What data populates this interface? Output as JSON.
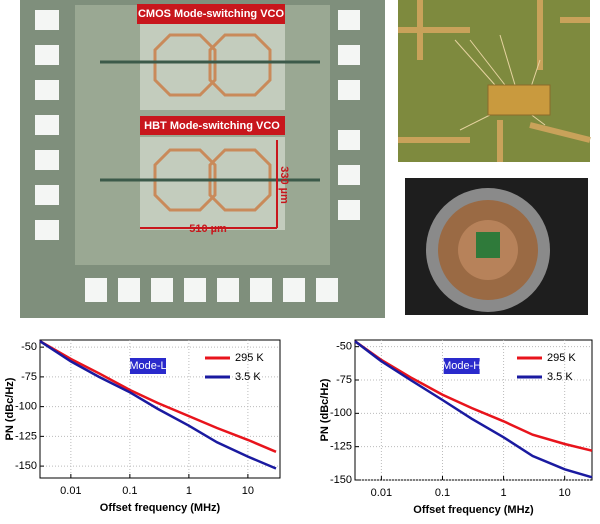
{
  "micrograph": {
    "labels": [
      "CMOS Mode-switching VCO",
      "HBT Mode-switching VCO"
    ],
    "height_label": "330 µm",
    "width_label": "510 µm"
  },
  "chart_data": [
    {
      "type": "line",
      "annotation": "Mode-L",
      "xlabel": "Offset frequency (MHz)",
      "ylabel": "PN (dBc/Hz)",
      "xscale": "log",
      "grid": true,
      "legend": "upper right",
      "x": [
        0.003,
        0.01,
        0.03,
        0.1,
        0.3,
        1,
        3,
        10,
        30
      ],
      "series": [
        {
          "name": "295 K",
          "color": "#e8141c",
          "values": [
            -45,
            -60,
            -72,
            -86,
            -97,
            -108,
            -118,
            -128,
            -138
          ]
        },
        {
          "name": "3.5 K",
          "color": "#1a1aa0",
          "values": [
            -45,
            -62,
            -75,
            -88,
            -102,
            -116,
            -130,
            -142,
            -152
          ]
        }
      ],
      "xlim": [
        0.003,
        35
      ],
      "ylim": [
        -160,
        -44
      ],
      "xticks": [
        0.01,
        0.1,
        1,
        10
      ],
      "yticks": [
        -50,
        -75,
        -100,
        -125,
        -150
      ]
    },
    {
      "type": "line",
      "annotation": "Mode-H",
      "xlabel": "Offset frequency (MHz)",
      "ylabel": "PN (dBc/Hz)",
      "xscale": "log",
      "grid": true,
      "legend": "upper right",
      "x": [
        0.0037,
        0.01,
        0.03,
        0.1,
        0.3,
        1,
        3,
        10,
        28
      ],
      "series": [
        {
          "name": "295 K",
          "color": "#e8141c",
          "values": [
            -46,
            -60,
            -73,
            -86,
            -96,
            -106,
            -116,
            -123,
            -128
          ]
        },
        {
          "name": "3.5 K",
          "color": "#1a1aa0",
          "values": [
            -46,
            -61,
            -75,
            -90,
            -104,
            -118,
            -132,
            -142,
            -148
          ]
        }
      ],
      "xlim": [
        0.0037,
        28
      ],
      "ylim": [
        -150,
        -45
      ],
      "xticks": [
        0.01,
        0.1,
        1,
        10
      ],
      "yticks": [
        -50,
        -75,
        -100,
        -125,
        -150
      ]
    }
  ]
}
